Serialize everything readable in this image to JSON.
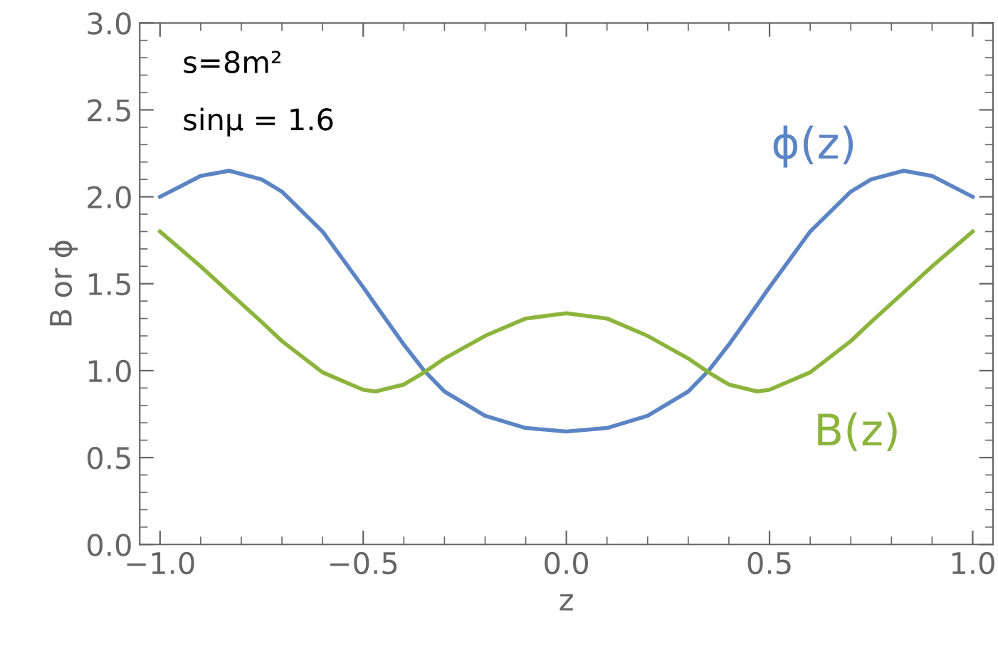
{
  "chart_data": {
    "type": "line",
    "xlabel": "z",
    "ylabel": "B or ϕ",
    "annotations": [
      "s=8m²",
      "sinμ = 1.6"
    ],
    "xlim": [
      -1.05,
      1.05
    ],
    "ylim": [
      0,
      3
    ],
    "xticks": [
      {
        "value": -1,
        "label": "−1.0"
      },
      {
        "value": -0.5,
        "label": "−0.5"
      },
      {
        "value": 0,
        "label": "0.0"
      },
      {
        "value": 0.5,
        "label": "0.5"
      },
      {
        "value": 1,
        "label": "1.0"
      }
    ],
    "yticks": [
      {
        "value": 0,
        "label": "0.0"
      },
      {
        "value": 0.5,
        "label": "0.5"
      },
      {
        "value": 1,
        "label": "1.0"
      },
      {
        "value": 1.5,
        "label": "1.5"
      },
      {
        "value": 2,
        "label": "2.0"
      },
      {
        "value": 2.5,
        "label": "2.5"
      },
      {
        "value": 3,
        "label": "3.0"
      }
    ],
    "grid": false,
    "legend": false,
    "marker": "none",
    "line_style": "solid",
    "x": [
      -1,
      -0.9,
      -0.83,
      -0.75,
      -0.7,
      -0.6,
      -0.5,
      -0.47,
      -0.4,
      -0.35,
      -0.3,
      -0.2,
      -0.1,
      0,
      0.1,
      0.2,
      0.3,
      0.35,
      0.4,
      0.47,
      0.5,
      0.6,
      0.7,
      0.75,
      0.83,
      0.9,
      1
    ],
    "series": [
      {
        "name": "ϕ(z)",
        "color": "#5b84c4",
        "values": [
          2.0,
          2.12,
          2.15,
          2.1,
          2.03,
          1.8,
          1.48,
          1.38,
          1.15,
          1.0,
          0.88,
          0.74,
          0.67,
          0.65,
          0.67,
          0.74,
          0.88,
          1.0,
          1.15,
          1.38,
          1.48,
          1.8,
          2.03,
          2.1,
          2.15,
          2.12,
          2.0
        ]
      },
      {
        "name": "B(z)",
        "color": "#8cb43c",
        "values": [
          1.8,
          1.6,
          1.45,
          1.28,
          1.17,
          0.99,
          0.89,
          0.88,
          0.92,
          0.99,
          1.07,
          1.2,
          1.3,
          1.33,
          1.3,
          1.2,
          1.07,
          0.99,
          0.92,
          0.88,
          0.89,
          0.99,
          1.17,
          1.28,
          1.45,
          1.6,
          1.8
        ]
      }
    ]
  }
}
